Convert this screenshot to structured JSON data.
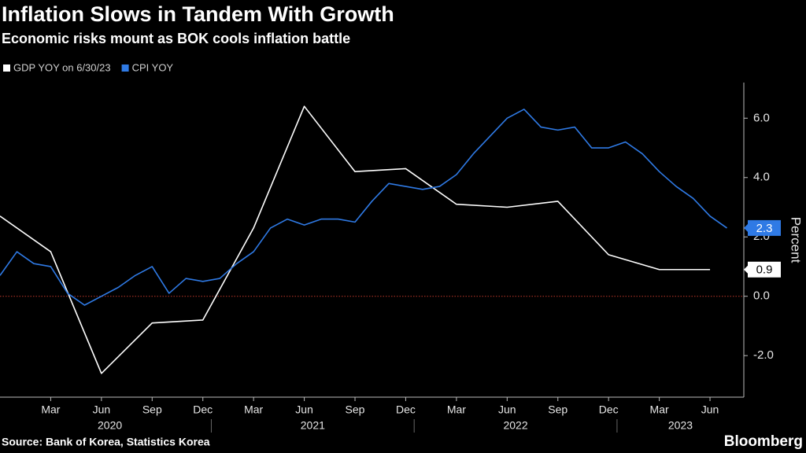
{
  "chart_data": {
    "type": "line",
    "title": "Inflation Slows in Tandem With Growth",
    "subtitle": "Economic risks mount as BOK cools inflation battle",
    "y_axis_label": "Percent",
    "source": "Source:  Bank of Korea, Statistics Korea",
    "brand": "Bloomberg",
    "series": [
      {
        "name": "GDP YOY on 6/30/23",
        "color": "#ffffff",
        "x": [
          "2019-12",
          "2020-03",
          "2020-06",
          "2020-09",
          "2020-12",
          "2021-03",
          "2021-06",
          "2021-09",
          "2021-12",
          "2022-03",
          "2022-06",
          "2022-09",
          "2022-12",
          "2023-03",
          "2023-06"
        ],
        "values": [
          2.7,
          1.5,
          -2.6,
          -0.9,
          -0.8,
          2.3,
          6.4,
          4.2,
          4.3,
          3.1,
          3.0,
          3.2,
          1.4,
          0.9,
          0.9
        ]
      },
      {
        "name": "CPI YOY",
        "color": "#2f7ae5",
        "x": [
          "2019-12",
          "2020-01",
          "2020-02",
          "2020-03",
          "2020-04",
          "2020-05",
          "2020-06",
          "2020-07",
          "2020-08",
          "2020-09",
          "2020-10",
          "2020-11",
          "2020-12",
          "2021-01",
          "2021-02",
          "2021-03",
          "2021-04",
          "2021-05",
          "2021-06",
          "2021-07",
          "2021-08",
          "2021-09",
          "2021-10",
          "2021-11",
          "2021-12",
          "2022-01",
          "2022-02",
          "2022-03",
          "2022-04",
          "2022-05",
          "2022-06",
          "2022-07",
          "2022-08",
          "2022-09",
          "2022-10",
          "2022-11",
          "2022-12",
          "2023-01",
          "2023-02",
          "2023-03",
          "2023-04",
          "2023-05",
          "2023-06",
          "2023-07"
        ],
        "values": [
          0.7,
          1.5,
          1.1,
          1.0,
          0.1,
          -0.3,
          0.0,
          0.3,
          0.7,
          1.0,
          0.1,
          0.6,
          0.5,
          0.6,
          1.1,
          1.5,
          2.3,
          2.6,
          2.4,
          2.6,
          2.6,
          2.5,
          3.2,
          3.8,
          3.7,
          3.6,
          3.7,
          4.1,
          4.8,
          5.4,
          6.0,
          6.3,
          5.7,
          5.6,
          5.7,
          5.0,
          5.0,
          5.2,
          4.8,
          4.2,
          3.7,
          3.3,
          2.7,
          2.3
        ]
      }
    ],
    "end_labels": true,
    "xlim": [
      "2019-12",
      "2023-08"
    ],
    "xticks": [
      {
        "value": "2020-03",
        "label": "Mar"
      },
      {
        "value": "2020-06",
        "label": "Jun"
      },
      {
        "value": "2020-09",
        "label": "Sep"
      },
      {
        "value": "2020-12",
        "label": "Dec"
      },
      {
        "value": "2021-03",
        "label": "Mar"
      },
      {
        "value": "2021-06",
        "label": "Jun"
      },
      {
        "value": "2021-09",
        "label": "Sep"
      },
      {
        "value": "2021-12",
        "label": "Dec"
      },
      {
        "value": "2022-03",
        "label": "Mar"
      },
      {
        "value": "2022-06",
        "label": "Jun"
      },
      {
        "value": "2022-09",
        "label": "Sep"
      },
      {
        "value": "2022-12",
        "label": "Dec"
      },
      {
        "value": "2023-03",
        "label": "Mar"
      },
      {
        "value": "2023-06",
        "label": "Jun"
      }
    ],
    "xticks_years": [
      "2020",
      "2021",
      "2022",
      "2023"
    ],
    "ylim": [
      -3.4,
      7.2
    ],
    "yticks": [
      {
        "value": -2,
        "label": "-2.0"
      },
      {
        "value": 0,
        "label": "0.0"
      },
      {
        "value": 2,
        "label": "2.0"
      },
      {
        "value": 4,
        "label": "4.0"
      },
      {
        "value": 6,
        "label": "6.0"
      }
    ],
    "y_axis_side": "right",
    "zero_line_color": "#c0392b",
    "grid": false
  }
}
